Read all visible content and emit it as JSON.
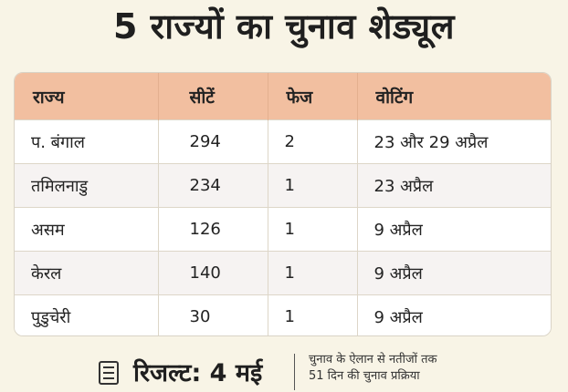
{
  "title": "5 राज्यों का चुनाव शेड्यूल",
  "table": {
    "headers": [
      "राज्य",
      "सीटें",
      "फेज",
      "वोटिंग"
    ],
    "rows": [
      [
        "प. बंगाल",
        "294",
        "2",
        "23 और 29 अप्रैल"
      ],
      [
        "तमिलनाडु",
        "234",
        "1",
        "23 अप्रैल"
      ],
      [
        "असम",
        "126",
        "1",
        "9 अप्रैल"
      ],
      [
        "केरल",
        "140",
        "1",
        "9 अप्रैल"
      ],
      [
        "पुडुचेरी",
        "30",
        "1",
        "9 अप्रैल"
      ]
    ]
  },
  "footer": {
    "icon": "list-icon",
    "result": "रिजल्ट: 4 मई",
    "note_line1": "चुनाव के ऐलान से नतीजों तक",
    "note_line2": "51 दिन की चुनाव प्रक्रिया"
  },
  "colors": {
    "header_bg": "#f2bfa0",
    "page_bg": "#f8f4e6"
  }
}
